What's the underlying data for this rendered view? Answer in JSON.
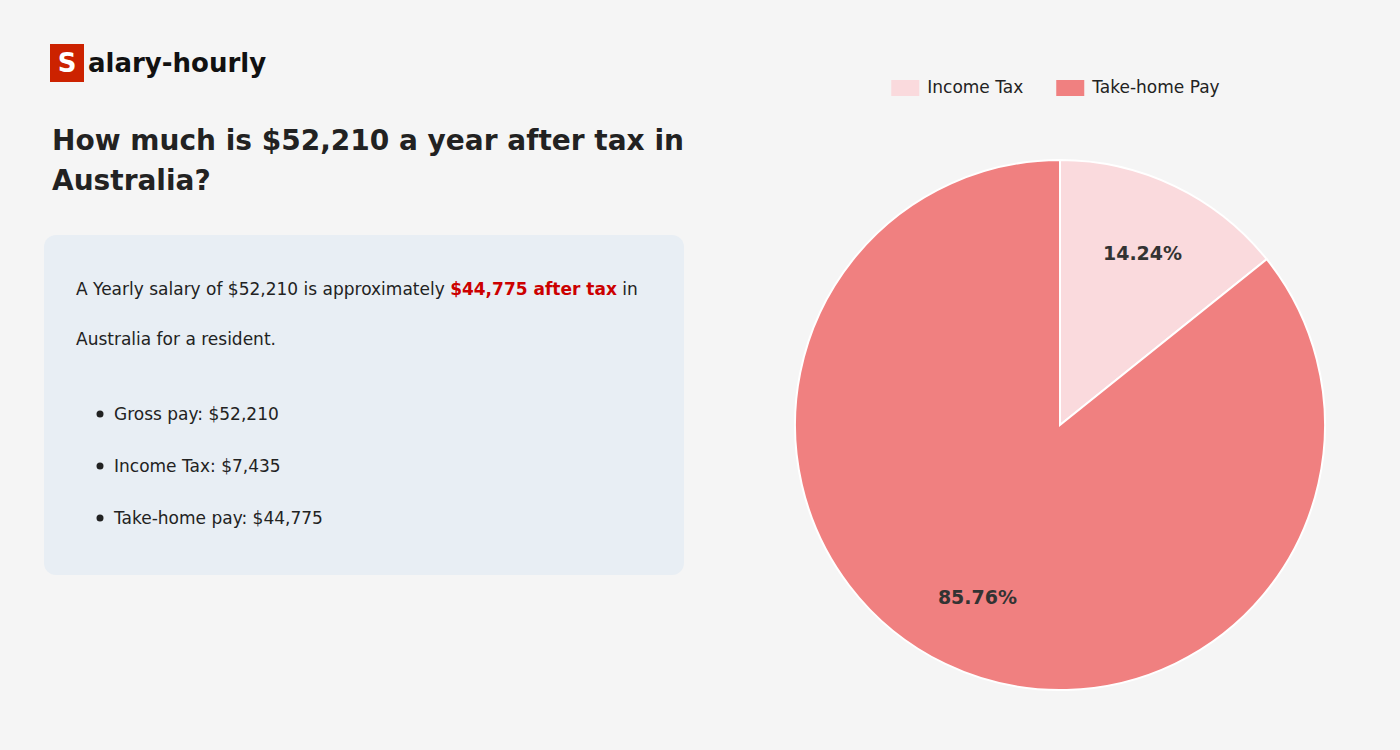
{
  "chart_data": {
    "type": "pie",
    "title": "How much is $52,210 a year after tax in\nAustralia?",
    "categories": [
      "Income Tax",
      "Take-home Pay"
    ],
    "values": [
      14.24,
      85.76
    ],
    "value_labels": [
      "14.24%",
      "85.76%"
    ],
    "colors": [
      "#fadadd",
      "#f08080"
    ],
    "data_labels": true,
    "legend": "top",
    "annotations": [
      {
        "text": "S",
        "color": "#cc2200"
      },
      {
        "text": "alary-hourly"
      },
      {
        "text": "A Yearly salary of $52,210 is approximately "
      },
      {
        "text": "$44,775 after tax",
        "color": "#cc0000"
      },
      {
        "text": " in"
      },
      {
        "text": "Australia for a resident."
      },
      {
        "text": "Gross pay: $52,210"
      },
      {
        "text": "Income Tax: $7,435"
      },
      {
        "text": "Take-home pay: $44,775"
      }
    ]
  }
}
